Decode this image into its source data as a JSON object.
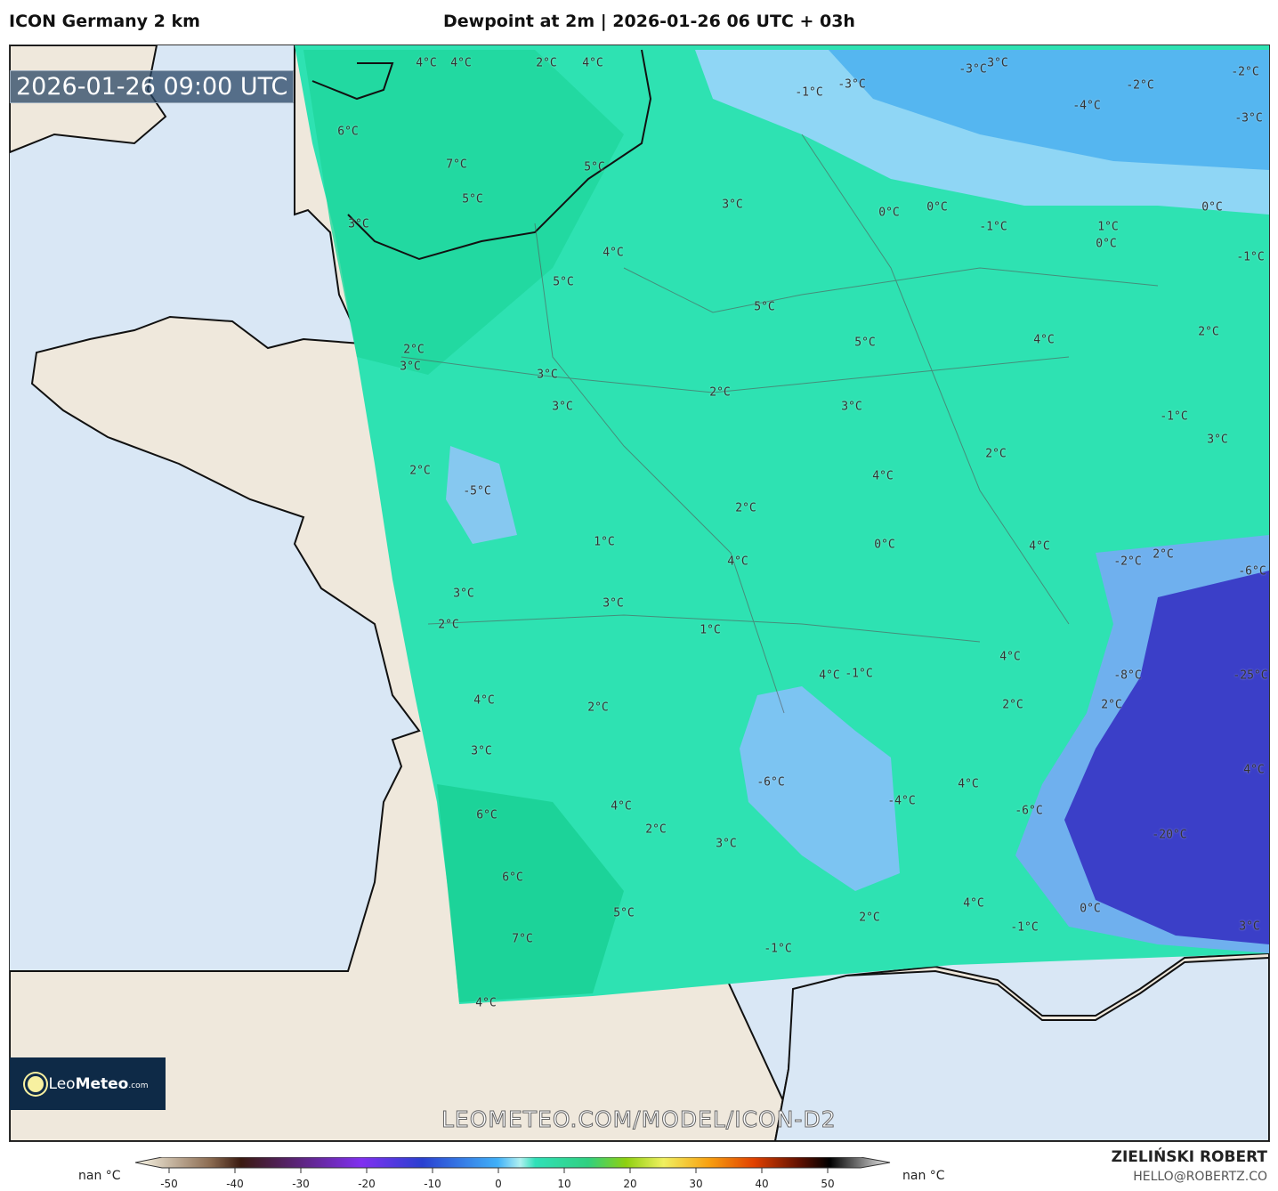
{
  "header": {
    "model": "ICON Germany 2 km",
    "title": "Dewpoint at 2m | 2026-01-26 06 UTC + 03h"
  },
  "map": {
    "valid_time": "2026-01-26 09:00 UTC",
    "watermark": "LEOMETEO.COM/MODEL/ICON-D2",
    "logo": {
      "prefix": "Leo",
      "name": "Meteo",
      "suffix": ".com"
    },
    "colors": {
      "ocean": "#d9e7f5",
      "land": "#efe8dc",
      "field_warm": "#1ed79a",
      "field_mid": "#3ae8c0",
      "field_cold": "#7cc8f5",
      "field_very_cold": "#3a3ac8"
    },
    "labels": [
      "4°C",
      "4°C",
      "2°C",
      "4°C",
      "6°C",
      "7°C",
      "5°C",
      "5°C",
      "3°C",
      "3°C",
      "4°C",
      "5°C",
      "5°C",
      "0°C",
      "0°C",
      "-1°C",
      "1°C",
      "0°C",
      "0°C",
      "-1°C",
      "-1°C",
      "-3°C",
      "-3°C",
      "3°C",
      "-2°C",
      "-4°C",
      "-2°C",
      "-3°C",
      "2°C",
      "3°C",
      "3°C",
      "3°C",
      "2°C",
      "5°C",
      "4°C",
      "2°C",
      "3°C",
      "-1°C",
      "3°C",
      "2°C",
      "-5°C",
      "2°C",
      "4°C",
      "2°C",
      "1°C",
      "0°C",
      "4°C",
      "4°C",
      "-2°C",
      "2°C",
      "-6°C",
      "3°C",
      "3°C",
      "2°C",
      "1°C",
      "4°C",
      "4°C",
      "-1°C",
      "-8°C",
      "-25°C",
      "4°C",
      "2°C",
      "2°C",
      "2°C",
      "3°C",
      "-6°C",
      "4°C",
      "-4°C",
      "4°C",
      "4°C",
      "-6°C",
      "6°C",
      "2°C",
      "3°C",
      "-20°C",
      "6°C",
      "5°C",
      "2°C",
      "4°C",
      "0°C",
      "-1°C",
      "7°C",
      "-1°C",
      "3°C",
      "4°C"
    ]
  },
  "colorbar": {
    "left_label": "nan °C",
    "right_label": "nan °C",
    "ticks": [
      "-50",
      "-40",
      "-30",
      "-20",
      "-10",
      "0",
      "10",
      "20",
      "30",
      "40",
      "50"
    ]
  },
  "footer": {
    "author": "ZIELIŃSKI ROBERT",
    "email": "HELLO@ROBERTZ.CO"
  }
}
